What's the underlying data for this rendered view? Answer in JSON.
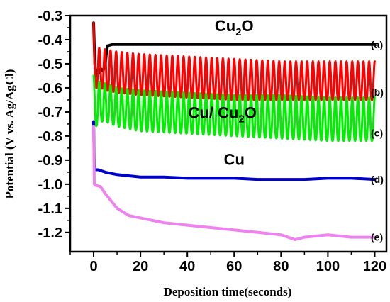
{
  "chart_data": {
    "type": "line",
    "title": "",
    "xlabel": "Deposition time(seconds)",
    "ylabel": "Potential (V vs. Ag/AgCl)",
    "xlim": [
      -10,
      125
    ],
    "ylim": [
      -1.28,
      -0.3
    ],
    "x_ticks": [
      0,
      20,
      40,
      60,
      80,
      100,
      120
    ],
    "x_tick_labels": [
      "0",
      "20",
      "40",
      "60",
      "80",
      "100",
      "120"
    ],
    "y_ticks": [
      -0.3,
      -0.4,
      -0.5,
      -0.6,
      -0.7,
      -0.8,
      -0.9,
      -1.0,
      -1.1,
      -1.2
    ],
    "y_tick_labels": [
      "-0.3",
      "-0.4",
      "-0.5",
      "-0.6",
      "-0.7",
      "-0.8",
      "-0.9",
      "-1.0",
      "-1.1",
      "-1.2"
    ],
    "annotations": [
      {
        "id": "cu2o",
        "text": "Cu",
        "sub": "2",
        "tail": "O",
        "x": 60,
        "y": -0.365
      },
      {
        "id": "cu-cu2o",
        "text": "Cu/ Cu",
        "sub": "2",
        "tail": "O",
        "x": 55,
        "y": -0.725
      },
      {
        "id": "cu",
        "text": "Cu",
        "sub": "",
        "tail": "",
        "x": 60,
        "y": -0.92
      }
    ],
    "series": [
      {
        "label": "(a)",
        "color": "#000000",
        "kind": "smooth",
        "x": [
          0,
          0.5,
          1,
          2,
          3,
          4,
          5,
          5.5,
          6,
          8,
          10,
          20,
          40,
          60,
          80,
          100,
          120
        ],
        "y": [
          -0.33,
          -0.5,
          -0.55,
          -0.54,
          -0.52,
          -0.53,
          -0.5,
          -0.45,
          -0.425,
          -0.42,
          -0.42,
          -0.42,
          -0.42,
          -0.42,
          -0.42,
          -0.42,
          -0.42
        ]
      },
      {
        "label": "(b)",
        "color": "#ff0000",
        "kind": "oscillation",
        "x": [
          0,
          0.3,
          1,
          2,
          3,
          5,
          10,
          20,
          40,
          60,
          80,
          100,
          120
        ],
        "envelope_high": [
          -0.33,
          -0.45,
          -0.42,
          -0.43,
          -0.44,
          -0.44,
          -0.45,
          -0.46,
          -0.47,
          -0.48,
          -0.49,
          -0.49,
          -0.49
        ],
        "envelope_low": [
          -0.33,
          -0.62,
          -0.6,
          -0.6,
          -0.6,
          -0.61,
          -0.62,
          -0.63,
          -0.64,
          -0.65,
          -0.65,
          -0.65,
          -0.65
        ],
        "period_s": 2.4
      },
      {
        "label": "(c)",
        "color": "#00ee00",
        "kind": "oscillation",
        "x": [
          0,
          0.3,
          1,
          2,
          3,
          5,
          10,
          20,
          40,
          60,
          80,
          100,
          120
        ],
        "envelope_high": [
          -0.55,
          -0.57,
          -0.57,
          -0.57,
          -0.58,
          -0.58,
          -0.6,
          -0.61,
          -0.62,
          -0.63,
          -0.63,
          -0.64,
          -0.64
        ],
        "envelope_low": [
          -0.74,
          -0.77,
          -0.76,
          -0.75,
          -0.74,
          -0.74,
          -0.76,
          -0.78,
          -0.79,
          -0.8,
          -0.81,
          -0.82,
          -0.82
        ],
        "period_s": 2.4
      },
      {
        "label": "(d)",
        "color": "#0000cc",
        "kind": "smooth",
        "x": [
          0,
          0.3,
          1,
          2,
          5,
          10,
          20,
          30,
          40,
          50,
          60,
          70,
          80,
          90,
          100,
          110,
          120
        ],
        "y": [
          -0.74,
          -0.93,
          -0.94,
          -0.94,
          -0.95,
          -0.96,
          -0.97,
          -0.97,
          -0.975,
          -0.975,
          -0.975,
          -0.98,
          -0.98,
          -0.98,
          -0.975,
          -0.975,
          -0.98
        ]
      },
      {
        "label": "(e)",
        "color": "#ee82ee",
        "kind": "smooth",
        "x": [
          0,
          0.3,
          1,
          3,
          5,
          10,
          15,
          20,
          30,
          40,
          50,
          60,
          70,
          80,
          86,
          90,
          100,
          110,
          120
        ],
        "y": [
          -0.76,
          -1.0,
          -1.005,
          -1.01,
          -1.04,
          -1.1,
          -1.13,
          -1.14,
          -1.16,
          -1.17,
          -1.18,
          -1.19,
          -1.2,
          -1.21,
          -1.23,
          -1.22,
          -1.21,
          -1.22,
          -1.22
        ]
      }
    ]
  }
}
